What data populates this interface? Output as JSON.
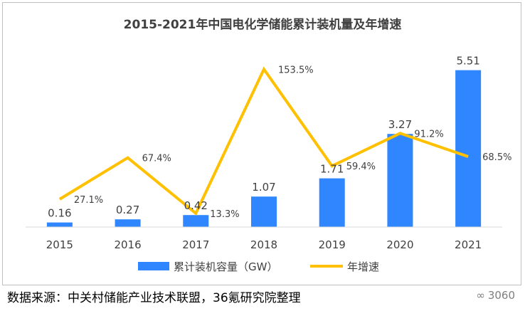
{
  "chart_data": {
    "type": "bar",
    "title": "2015-2021年中国电化学储能累计装机量及年增速",
    "categories": [
      "2015",
      "2016",
      "2017",
      "2018",
      "2019",
      "2020",
      "2021"
    ],
    "series": [
      {
        "name": "累计装机容量（GW）",
        "type": "bar",
        "axis": "left",
        "values": [
          0.16,
          0.27,
          0.42,
          1.07,
          1.71,
          3.27,
          5.51
        ],
        "labels": [
          "0.16",
          "0.27",
          "0.42",
          "1.07",
          "1.71",
          "3.27",
          "5.51"
        ],
        "color": "#2f86ff"
      },
      {
        "name": "年增速",
        "type": "line",
        "axis": "right",
        "unit": "%",
        "values": [
          27.1,
          67.4,
          13.3,
          153.5,
          59.4,
          91.2,
          68.5
        ],
        "labels": [
          "27.1%",
          "67.4%",
          "13.3%",
          "153.5%",
          "59.4%",
          "91.2%",
          "68.5%"
        ],
        "color": "#ffc000"
      }
    ],
    "ylim_left": [
      0,
      6
    ],
    "ylim_right": [
      0,
      180
    ],
    "grid": false,
    "legend_position": "bottom"
  },
  "footer": {
    "source": "数据来源：中关村储能产业技术联盟，36氪研究院整理",
    "watermark": "3060"
  }
}
